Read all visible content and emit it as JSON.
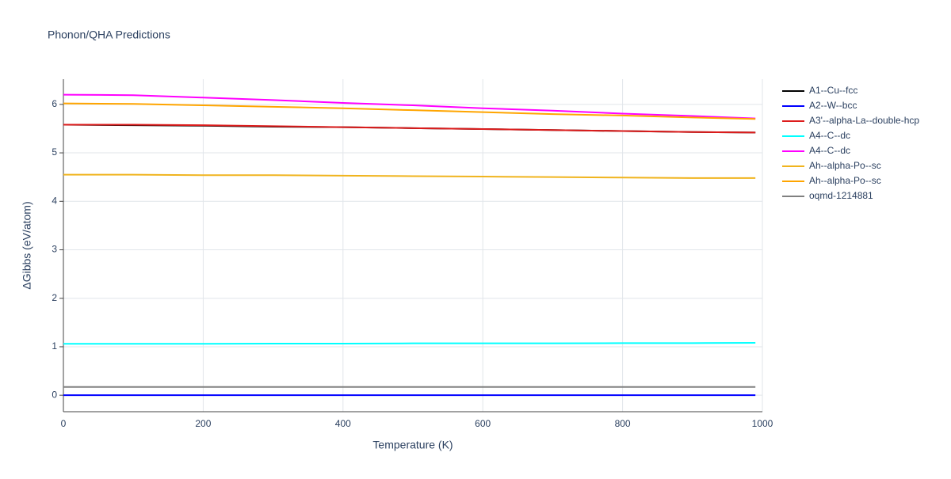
{
  "chart_data": {
    "type": "line",
    "title": "Phonon/QHA Predictions",
    "x_label": "Temperature (K)",
    "y_label": "ΔGibbs (eV/atom)",
    "x": [
      0,
      100,
      200,
      300,
      400,
      500,
      600,
      700,
      800,
      900,
      990
    ],
    "xlim": [
      0,
      1000
    ],
    "xticks": [
      0,
      200,
      400,
      600,
      800,
      1000
    ],
    "ylim": [
      -0.34,
      6.52
    ],
    "yticks": [
      0,
      1,
      2,
      3,
      4,
      5,
      6
    ],
    "grid": true,
    "series": [
      {
        "name": "A1--Cu--fcc",
        "color": "#000000",
        "values": [
          5.58,
          5.57,
          5.56,
          5.54,
          5.53,
          5.51,
          5.49,
          5.47,
          5.45,
          5.43,
          5.42
        ]
      },
      {
        "name": "A2--W--bcc",
        "color": "#0000ff",
        "values": [
          0,
          0,
          0,
          0,
          0,
          0,
          0,
          0,
          0,
          0,
          0
        ]
      },
      {
        "name": "A3'--alpha-La--double-hcp",
        "color": "#dd1c1c",
        "values": [
          5.58,
          5.58,
          5.57,
          5.55,
          5.53,
          5.51,
          5.49,
          5.47,
          5.45,
          5.43,
          5.42
        ]
      },
      {
        "name": "A4--C--dc",
        "color": "#00ffff",
        "values": [
          1.06,
          1.06,
          1.06,
          1.065,
          1.065,
          1.07,
          1.07,
          1.07,
          1.075,
          1.075,
          1.08
        ]
      },
      {
        "name": "A4--C--dc",
        "color": "#ff00ff",
        "values": [
          6.2,
          6.19,
          6.14,
          6.09,
          6.03,
          5.98,
          5.92,
          5.87,
          5.81,
          5.76,
          5.71
        ]
      },
      {
        "name": "Ah--alpha-Po--sc",
        "color": "#f0b41e",
        "values": [
          4.55,
          4.55,
          4.54,
          4.54,
          4.53,
          4.52,
          4.51,
          4.5,
          4.49,
          4.48,
          4.48
        ]
      },
      {
        "name": "Ah--alpha-Po--sc",
        "color": "#ffa500",
        "values": [
          6.02,
          6.01,
          5.98,
          5.95,
          5.92,
          5.88,
          5.84,
          5.8,
          5.77,
          5.73,
          5.7
        ]
      },
      {
        "name": "oqmd-1214881",
        "color": "#808080",
        "values": [
          0.17,
          0.17,
          0.17,
          0.17,
          0.17,
          0.17,
          0.17,
          0.17,
          0.17,
          0.17,
          0.17
        ]
      }
    ]
  }
}
